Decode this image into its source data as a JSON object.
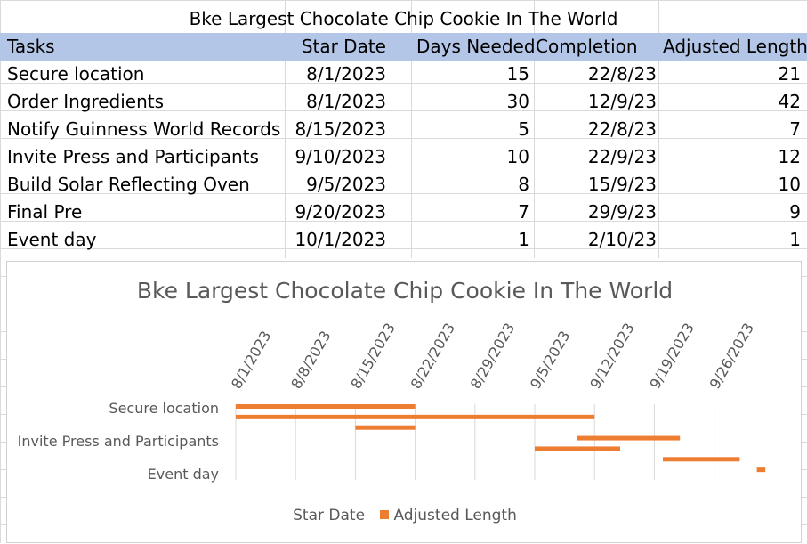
{
  "sheet": {
    "title": "Bke Largest Chocolate Chip Cookie In The World",
    "headers": [
      "Tasks",
      "Star Date",
      "Days Needed",
      "Completion",
      "Adjusted Length"
    ],
    "rows": [
      [
        "Secure location",
        "8/1/2023",
        "15",
        "22/8/23",
        "21"
      ],
      [
        "Order Ingredients",
        "8/1/2023",
        "30",
        "12/9/23",
        "42"
      ],
      [
        "Notify Guinness World Records",
        "8/15/2023",
        "5",
        "22/8/23",
        "7"
      ],
      [
        "Invite Press and Participants",
        "9/10/2023",
        "10",
        "22/9/23",
        "12"
      ],
      [
        "Build Solar Reflecting Oven",
        "9/5/2023",
        "8",
        "15/9/23",
        "10"
      ],
      [
        "Final Pre",
        "9/20/2023",
        "7",
        "29/9/23",
        "9"
      ],
      [
        "Event day",
        "10/1/2023",
        "1",
        "2/10/23",
        "1"
      ]
    ],
    "header_color": "#b4c6e7"
  },
  "chart_data": {
    "type": "bar",
    "orientation": "horizontal-stacked",
    "title": "Bke Largest Chocolate Chip Cookie In The World",
    "categories": [
      "Secure location",
      "Order Ingredients",
      "Notify Guinness World Records",
      "Invite Press and Participants",
      "Build Solar Reflecting Oven",
      "Final Pre",
      "Event day"
    ],
    "visible_category_labels": [
      "Secure location",
      "Invite Press and Participants",
      "Event day"
    ],
    "x_tick_labels": [
      "8/1/2023",
      "8/8/2023",
      "8/15/2023",
      "8/22/2023",
      "8/29/2023",
      "9/5/2023",
      "9/12/2023",
      "9/19/2023",
      "9/26/2023"
    ],
    "x_tick_days": [
      0,
      7,
      14,
      21,
      28,
      35,
      42,
      49,
      56
    ],
    "start_days": [
      0,
      0,
      14,
      40,
      35,
      50,
      61
    ],
    "series": [
      {
        "name": "Star Date",
        "color": "none",
        "values": [
          "8/1/2023",
          "8/1/2023",
          "8/15/2023",
          "9/10/2023",
          "9/5/2023",
          "9/20/2023",
          "10/1/2023"
        ]
      },
      {
        "name": "Adjusted Length",
        "color": "#ed7d31",
        "values": [
          21,
          42,
          7,
          12,
          10,
          9,
          1
        ]
      }
    ],
    "legend": "bottom",
    "x_axis_position": "top",
    "grid": true
  }
}
